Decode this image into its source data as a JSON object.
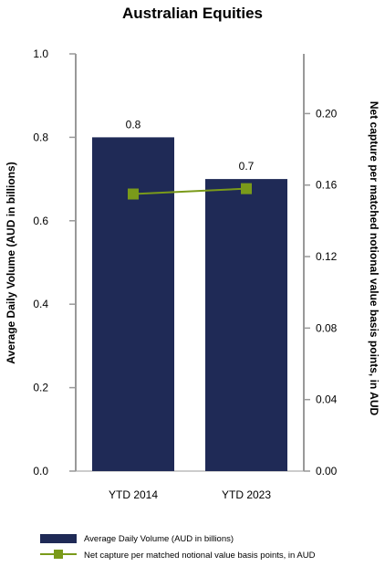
{
  "chart_data": {
    "type": "bar",
    "title": "Australian Equities",
    "categories": [
      "YTD 2014",
      "YTD 2023"
    ],
    "series": [
      {
        "name": "Average Daily Volume (AUD in billions)",
        "type": "bar",
        "axis": "left",
        "values": [
          0.8,
          0.7
        ],
        "data_labels": [
          "0.8",
          "0.7"
        ],
        "color": "#1f2a56"
      },
      {
        "name": "Net capture per matched notional value basis points, in AUD",
        "type": "line",
        "axis": "right",
        "values": [
          0.155,
          0.158
        ],
        "color": "#7a9a1a"
      }
    ],
    "y_left": {
      "label": "Average Daily Volume (AUD in billions)",
      "ylim": [
        0,
        1.0
      ],
      "ticks": [
        "0.0",
        "0.2",
        "0.4",
        "0.6",
        "0.8",
        "1.0"
      ],
      "tick_values": [
        0,
        0.2,
        0.4,
        0.6,
        0.8,
        1.0
      ]
    },
    "y_right": {
      "label": "Net capture per matched notional value basis points, in AUD",
      "ylim": [
        0,
        0.2334
      ],
      "ticks": [
        "0.00",
        "0.04",
        "0.08",
        "0.12",
        "0.16",
        "0.20"
      ],
      "tick_values": [
        0,
        0.04,
        0.08,
        0.12,
        0.16,
        0.2
      ]
    },
    "grid": false,
    "legend": "bottom"
  }
}
